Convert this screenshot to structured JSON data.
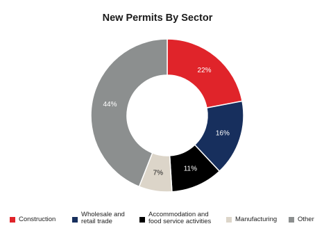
{
  "chart_data": {
    "type": "pie",
    "donut": true,
    "title": "New Permits By Sector",
    "slices": [
      {
        "label": "Construction",
        "value": 22,
        "display": "22%",
        "color": "#e0242a",
        "text_color": "#ffffff"
      },
      {
        "label": "Wholesale and retail trade",
        "value": 16,
        "display": "16%",
        "color": "#172f5d",
        "text_color": "#ffffff"
      },
      {
        "label": "Accommodation and food service activities",
        "value": 11,
        "display": "11%",
        "color": "#000000",
        "text_color": "#ffffff"
      },
      {
        "label": "Manufacturing",
        "value": 7,
        "display": "7%",
        "color": "#dcd5c9",
        "text_color": "#222222"
      },
      {
        "label": "Other",
        "value": 44,
        "display": "44%",
        "color": "#8c8f8f",
        "text_color": "#ffffff"
      }
    ],
    "legend": {
      "placement": "bottom",
      "entries": [
        "Construction",
        "Wholesale and\nretail trade",
        "Accommodation and\nfood service activities",
        "Manufacturing",
        "Other"
      ]
    }
  }
}
